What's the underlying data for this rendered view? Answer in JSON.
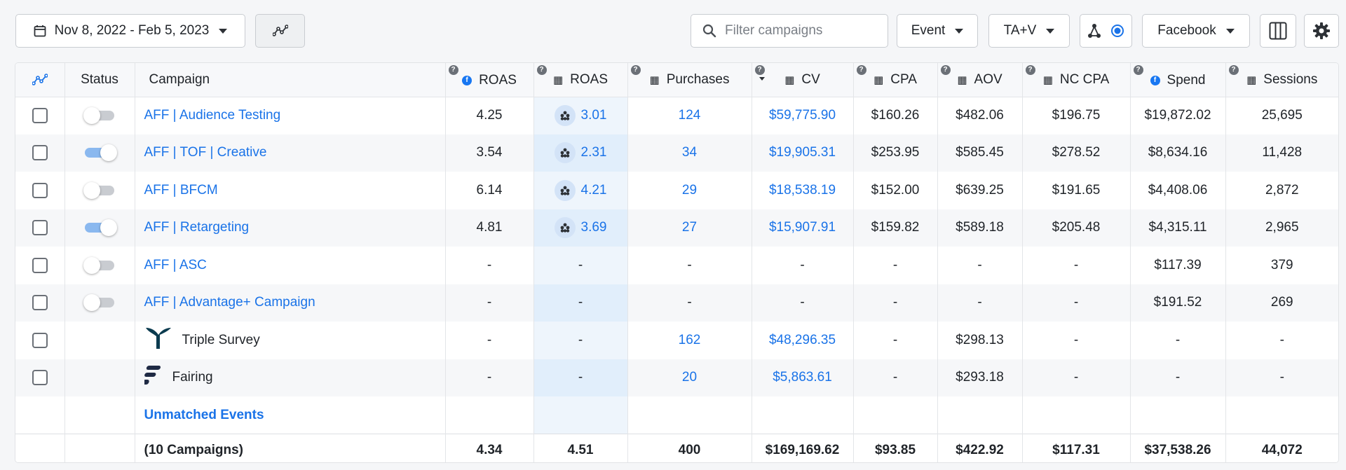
{
  "toolbar": {
    "date_range": "Nov 8, 2022 - Feb 5, 2023",
    "search_placeholder": "Filter campaigns",
    "event_label": "Event",
    "attribution_label": "TA+V",
    "platform_label": "Facebook"
  },
  "columns": {
    "status": "Status",
    "campaign": "Campaign",
    "roas_fb": "ROAS",
    "roas_pixel": "ROAS",
    "purchases": "Purchases",
    "cv": "CV",
    "cpa": "CPA",
    "aov": "AOV",
    "nc_cpa": "NC CPA",
    "spend": "Spend",
    "sessions": "Sessions"
  },
  "rows": [
    {
      "campaign": "AFF | Audience Testing",
      "status_on": false,
      "roas_fb": "4.25",
      "roas_pixel": "3.01",
      "purchases": "124",
      "cv": "$59,775.90",
      "cpa": "$160.26",
      "aov": "$482.06",
      "nc_cpa": "$196.75",
      "spend": "$19,872.02",
      "sessions": "25,695"
    },
    {
      "campaign": "AFF | TOF | Creative",
      "status_on": true,
      "roas_fb": "3.54",
      "roas_pixel": "2.31",
      "purchases": "34",
      "cv": "$19,905.31",
      "cpa": "$253.95",
      "aov": "$585.45",
      "nc_cpa": "$278.52",
      "spend": "$8,634.16",
      "sessions": "11,428"
    },
    {
      "campaign": "AFF | BFCM",
      "status_on": false,
      "roas_fb": "6.14",
      "roas_pixel": "4.21",
      "purchases": "29",
      "cv": "$18,538.19",
      "cpa": "$152.00",
      "aov": "$639.25",
      "nc_cpa": "$191.65",
      "spend": "$4,408.06",
      "sessions": "2,872"
    },
    {
      "campaign": "AFF | Retargeting",
      "status_on": true,
      "roas_fb": "4.81",
      "roas_pixel": "3.69",
      "purchases": "27",
      "cv": "$15,907.91",
      "cpa": "$159.82",
      "aov": "$589.18",
      "nc_cpa": "$205.48",
      "spend": "$4,315.11",
      "sessions": "2,965"
    },
    {
      "campaign": "AFF | ASC",
      "status_on": false,
      "roas_fb": "-",
      "roas_pixel": "-",
      "purchases": "-",
      "cv": "-",
      "cpa": "-",
      "aov": "-",
      "nc_cpa": "-",
      "spend": "$117.39",
      "sessions": "379"
    },
    {
      "campaign": "AFF | Advantage+ Campaign",
      "status_on": false,
      "roas_fb": "-",
      "roas_pixel": "-",
      "purchases": "-",
      "cv": "-",
      "cpa": "-",
      "aov": "-",
      "nc_cpa": "-",
      "spend": "$191.52",
      "sessions": "269"
    },
    {
      "campaign": "Triple Survey",
      "source": true,
      "roas_fb": "-",
      "roas_pixel": "-",
      "purchases": "162",
      "cv": "$48,296.35",
      "cpa": "-",
      "aov": "$298.13",
      "nc_cpa": "-",
      "spend": "-",
      "sessions": "-"
    },
    {
      "campaign": "Fairing",
      "source": true,
      "roas_fb": "-",
      "roas_pixel": "-",
      "purchases": "20",
      "cv": "$5,863.61",
      "cpa": "-",
      "aov": "$293.18",
      "nc_cpa": "-",
      "spend": "-",
      "sessions": "-"
    }
  ],
  "unmatched_label": "Unmatched Events",
  "totals": {
    "campaign": "(10 Campaigns)",
    "roas_fb": "4.34",
    "roas_pixel": "4.51",
    "purchases": "400",
    "cv": "$169,169.62",
    "cpa": "$93.85",
    "aov": "$422.92",
    "nc_cpa": "$117.31",
    "spend": "$37,538.26",
    "sessions": "44,072"
  },
  "colors": {
    "link": "#1a73e8",
    "toggle_on": "#8ab8ef",
    "roas_pixel_bg": "#eef5fc"
  }
}
